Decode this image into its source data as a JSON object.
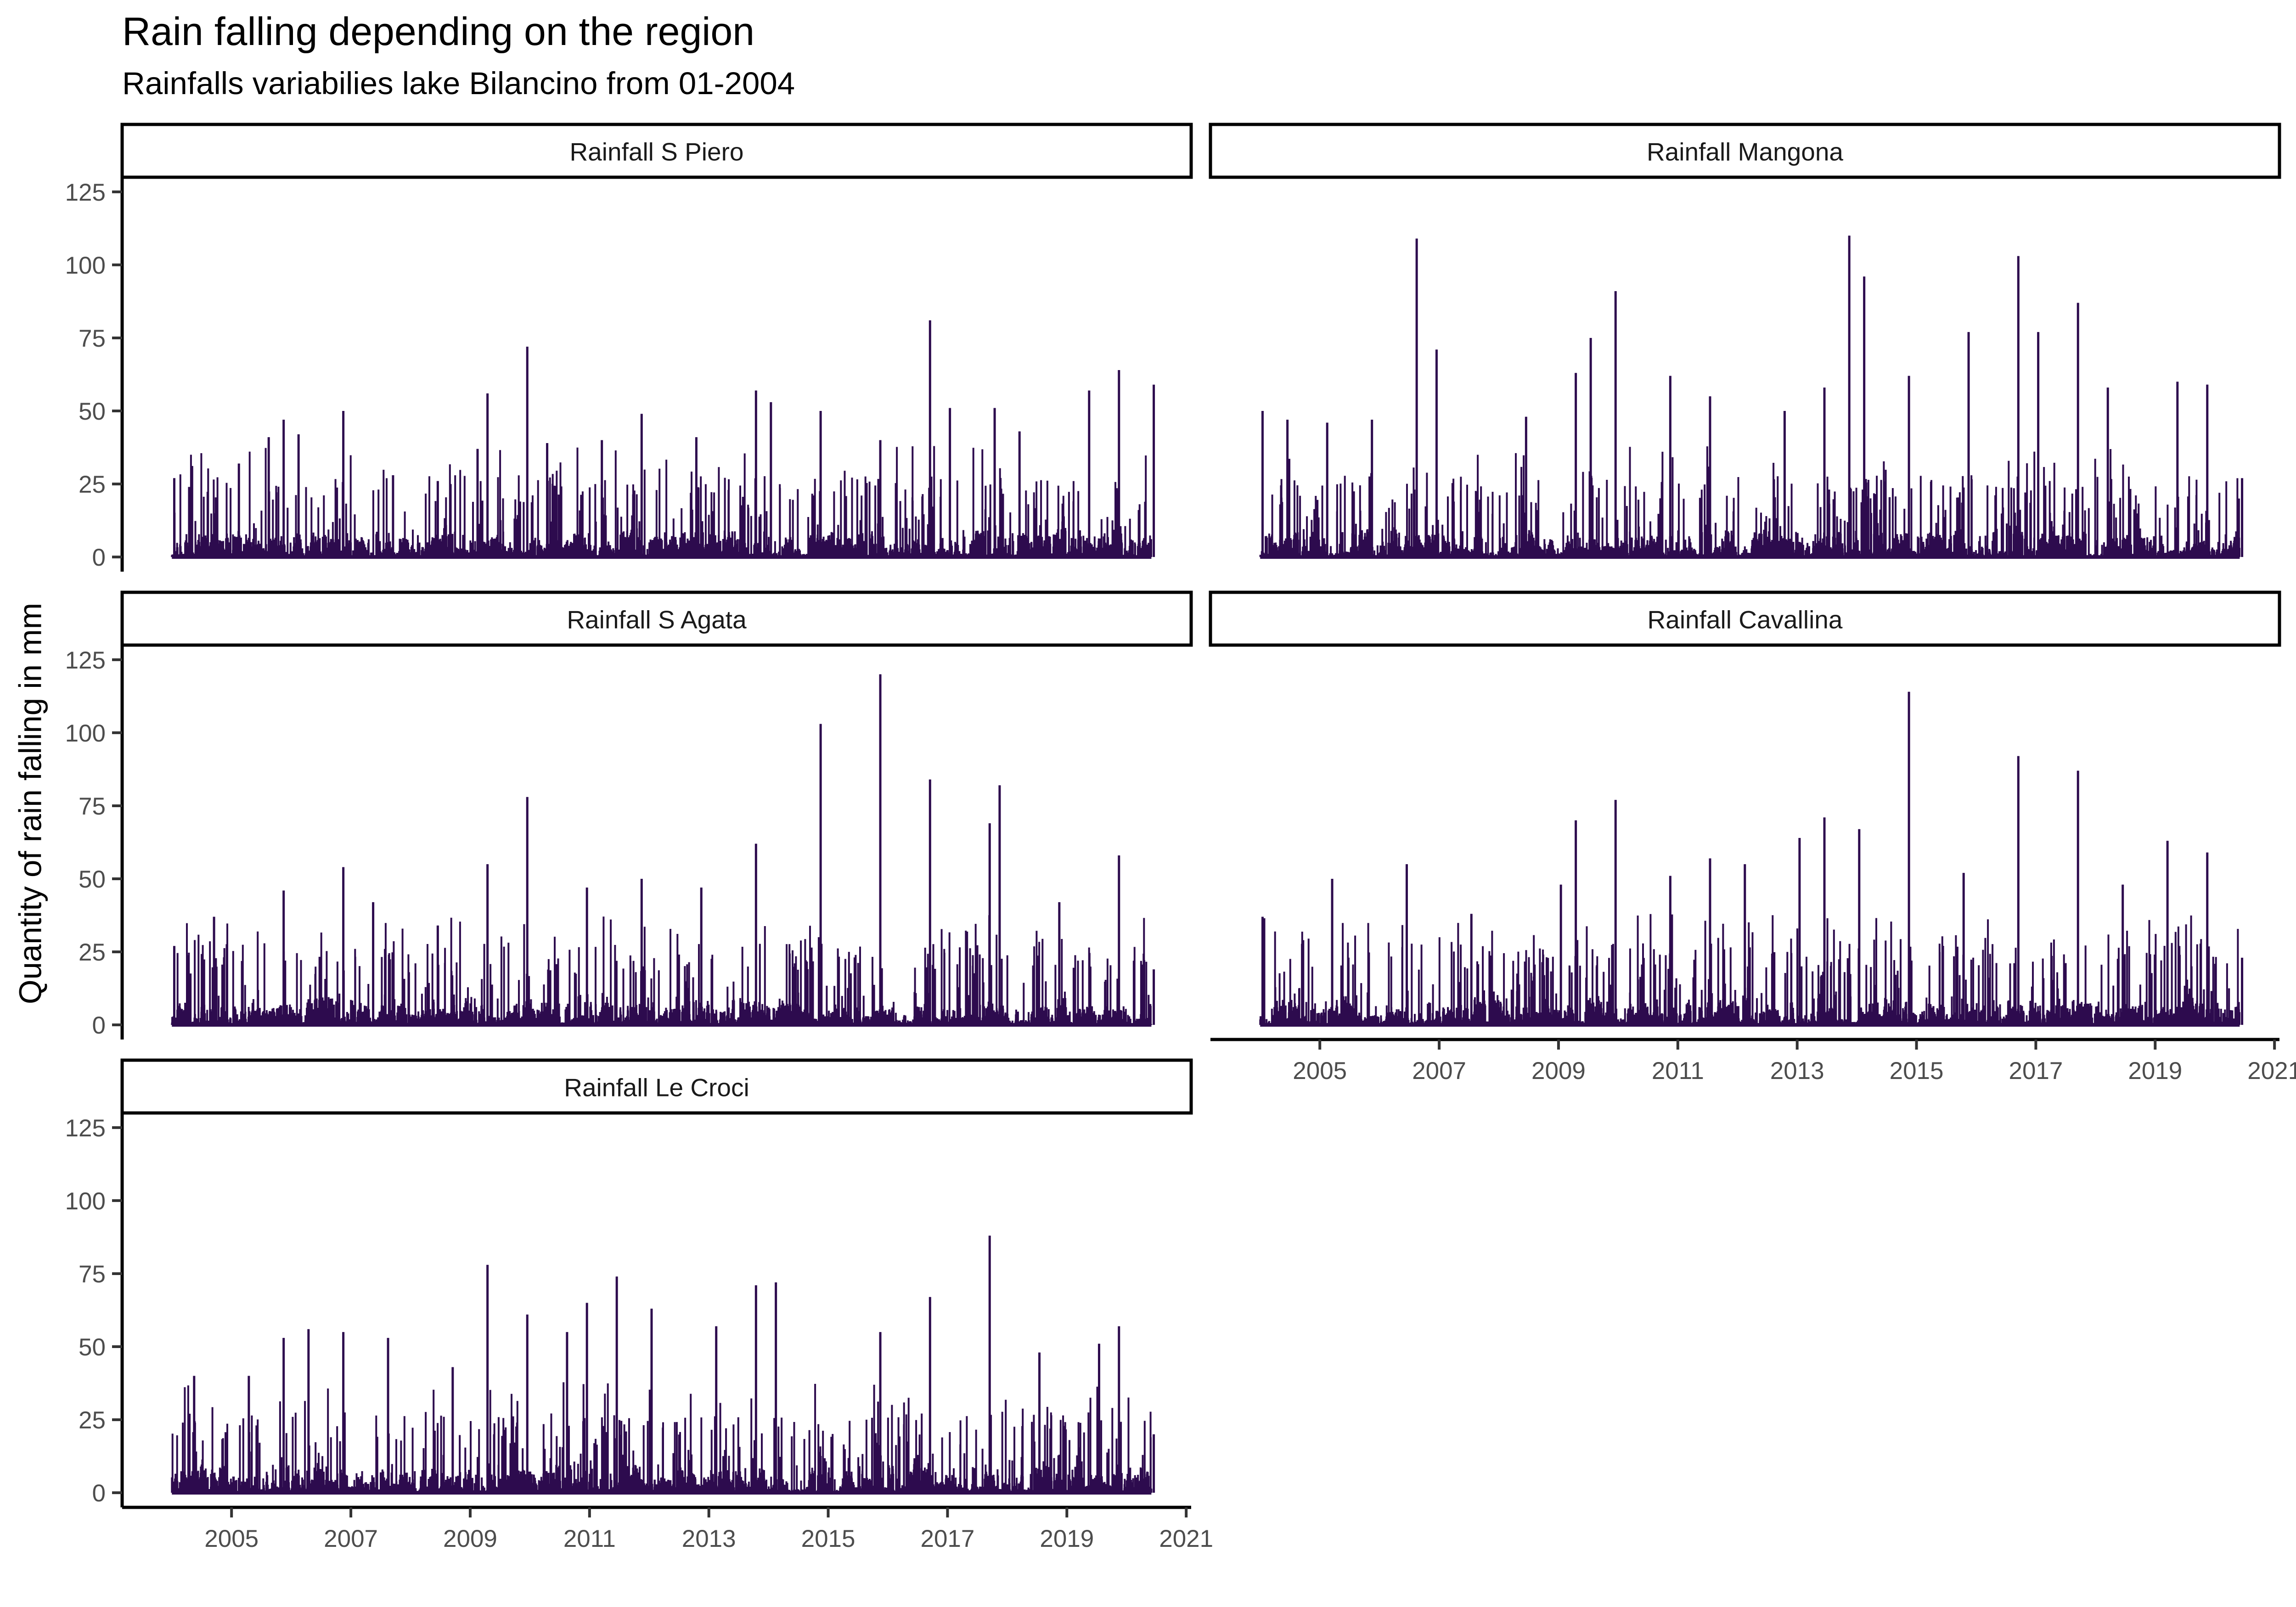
{
  "title": "Rain falling depending on the region",
  "subtitle": "Rainfalls variabilies lake Bilancino from 01-2004",
  "ylabel": "Quantity of rain falling in mm",
  "chart_data": {
    "type": "line",
    "layout": "facet_wrap, 2 columns, shared axes",
    "xlabel": "",
    "ylabel": "Quantity of rain falling in mm",
    "xlim": [
      "2003-03",
      "2021-02"
    ],
    "ylim": [
      -5,
      130
    ],
    "x_ticks": [
      "2005",
      "2007",
      "2009",
      "2011",
      "2013",
      "2015",
      "2017",
      "2019",
      "2021"
    ],
    "y_ticks": [
      0,
      25,
      50,
      75,
      100,
      125
    ],
    "line_color": "#2d0b4e",
    "grid": false,
    "series_span": [
      "2004-01",
      "2020-06"
    ],
    "note_values": "daily series; values listed are the visible peak values (mm) by approximate date",
    "facets": [
      {
        "name": "Rainfall S Piero",
        "peaks": [
          {
            "x": "2004-01",
            "y": 27
          },
          {
            "x": "2004-04",
            "y": 24
          },
          {
            "x": "2005-02",
            "y": 32
          },
          {
            "x": "2005-08",
            "y": 41
          },
          {
            "x": "2005-11",
            "y": 47
          },
          {
            "x": "2006-02",
            "y": 42
          },
          {
            "x": "2006-11",
            "y": 50
          },
          {
            "x": "2007-09",
            "y": 28
          },
          {
            "x": "2008-06",
            "y": 26
          },
          {
            "x": "2009-02",
            "y": 37
          },
          {
            "x": "2009-04",
            "y": 56
          },
          {
            "x": "2009-12",
            "y": 72
          },
          {
            "x": "2010-04",
            "y": 39
          },
          {
            "x": "2011-03",
            "y": 40
          },
          {
            "x": "2011-11",
            "y": 49
          },
          {
            "x": "2012-10",
            "y": 41
          },
          {
            "x": "2013-10",
            "y": 57
          },
          {
            "x": "2014-01",
            "y": 53
          },
          {
            "x": "2014-11",
            "y": 50
          },
          {
            "x": "2015-11",
            "y": 40
          },
          {
            "x": "2016-09",
            "y": 81
          },
          {
            "x": "2017-01",
            "y": 51
          },
          {
            "x": "2017-10",
            "y": 51
          },
          {
            "x": "2018-03",
            "y": 43
          },
          {
            "x": "2019-05",
            "y": 57
          },
          {
            "x": "2019-11",
            "y": 64
          },
          {
            "x": "2020-06",
            "y": 59
          }
        ]
      },
      {
        "name": "Rainfall Mangona",
        "peaks": [
          {
            "x": "2004-01",
            "y": 50
          },
          {
            "x": "2004-06",
            "y": 47
          },
          {
            "x": "2005-02",
            "y": 46
          },
          {
            "x": "2005-11",
            "y": 47
          },
          {
            "x": "2006-08",
            "y": 109
          },
          {
            "x": "2006-12",
            "y": 71
          },
          {
            "x": "2008-06",
            "y": 48
          },
          {
            "x": "2009-04",
            "y": 63
          },
          {
            "x": "2009-07",
            "y": 75
          },
          {
            "x": "2009-12",
            "y": 91
          },
          {
            "x": "2010-11",
            "y": 62
          },
          {
            "x": "2011-07",
            "y": 55
          },
          {
            "x": "2012-10",
            "y": 50
          },
          {
            "x": "2013-06",
            "y": 58
          },
          {
            "x": "2013-11",
            "y": 110
          },
          {
            "x": "2014-02",
            "y": 96
          },
          {
            "x": "2014-11",
            "y": 62
          },
          {
            "x": "2015-11",
            "y": 77
          },
          {
            "x": "2016-09",
            "y": 103
          },
          {
            "x": "2017-01",
            "y": 77
          },
          {
            "x": "2017-09",
            "y": 87
          },
          {
            "x": "2018-03",
            "y": 58
          },
          {
            "x": "2019-05",
            "y": 60
          },
          {
            "x": "2019-11",
            "y": 59
          },
          {
            "x": "2020-06",
            "y": 27
          }
        ]
      },
      {
        "name": "Rainfall S Agata",
        "peaks": [
          {
            "x": "2004-01",
            "y": 27
          },
          {
            "x": "2004-09",
            "y": 37
          },
          {
            "x": "2005-11",
            "y": 46
          },
          {
            "x": "2006-11",
            "y": 54
          },
          {
            "x": "2007-05",
            "y": 42
          },
          {
            "x": "2008-06",
            "y": 34
          },
          {
            "x": "2009-04",
            "y": 55
          },
          {
            "x": "2009-12",
            "y": 78
          },
          {
            "x": "2010-12",
            "y": 47
          },
          {
            "x": "2011-11",
            "y": 50
          },
          {
            "x": "2012-11",
            "y": 47
          },
          {
            "x": "2013-10",
            "y": 62
          },
          {
            "x": "2014-11",
            "y": 103
          },
          {
            "x": "2015-11",
            "y": 120
          },
          {
            "x": "2016-09",
            "y": 84
          },
          {
            "x": "2017-09",
            "y": 69
          },
          {
            "x": "2017-11",
            "y": 82
          },
          {
            "x": "2018-11",
            "y": 42
          },
          {
            "x": "2019-11",
            "y": 58
          },
          {
            "x": "2020-06",
            "y": 19
          }
        ]
      },
      {
        "name": "Rainfall Cavallina",
        "peaks": [
          {
            "x": "2004-01",
            "y": 37
          },
          {
            "x": "2005-03",
            "y": 50
          },
          {
            "x": "2006-06",
            "y": 55
          },
          {
            "x": "2007-07",
            "y": 38
          },
          {
            "x": "2009-01",
            "y": 48
          },
          {
            "x": "2009-04",
            "y": 70
          },
          {
            "x": "2009-12",
            "y": 77
          },
          {
            "x": "2010-11",
            "y": 51
          },
          {
            "x": "2011-07",
            "y": 57
          },
          {
            "x": "2012-02",
            "y": 55
          },
          {
            "x": "2013-01",
            "y": 64
          },
          {
            "x": "2013-06",
            "y": 71
          },
          {
            "x": "2014-01",
            "y": 67
          },
          {
            "x": "2014-11",
            "y": 114
          },
          {
            "x": "2015-10",
            "y": 52
          },
          {
            "x": "2016-09",
            "y": 92
          },
          {
            "x": "2017-09",
            "y": 87
          },
          {
            "x": "2018-06",
            "y": 48
          },
          {
            "x": "2019-03",
            "y": 63
          },
          {
            "x": "2019-11",
            "y": 59
          },
          {
            "x": "2020-06",
            "y": 23
          }
        ]
      },
      {
        "name": "Rainfall Le Croci",
        "peaks": [
          {
            "x": "2004-05",
            "y": 40
          },
          {
            "x": "2005-04",
            "y": 40
          },
          {
            "x": "2005-11",
            "y": 53
          },
          {
            "x": "2006-04",
            "y": 56
          },
          {
            "x": "2006-11",
            "y": 55
          },
          {
            "x": "2007-08",
            "y": 53
          },
          {
            "x": "2008-09",
            "y": 43
          },
          {
            "x": "2009-04",
            "y": 78
          },
          {
            "x": "2009-12",
            "y": 61
          },
          {
            "x": "2010-08",
            "y": 55
          },
          {
            "x": "2010-12",
            "y": 65
          },
          {
            "x": "2011-06",
            "y": 74
          },
          {
            "x": "2012-01",
            "y": 63
          },
          {
            "x": "2013-02",
            "y": 57
          },
          {
            "x": "2013-10",
            "y": 71
          },
          {
            "x": "2014-02",
            "y": 72
          },
          {
            "x": "2015-11",
            "y": 55
          },
          {
            "x": "2016-09",
            "y": 67
          },
          {
            "x": "2017-09",
            "y": 88
          },
          {
            "x": "2018-07",
            "y": 48
          },
          {
            "x": "2019-07",
            "y": 51
          },
          {
            "x": "2019-11",
            "y": 57
          },
          {
            "x": "2020-06",
            "y": 20
          }
        ]
      }
    ]
  }
}
